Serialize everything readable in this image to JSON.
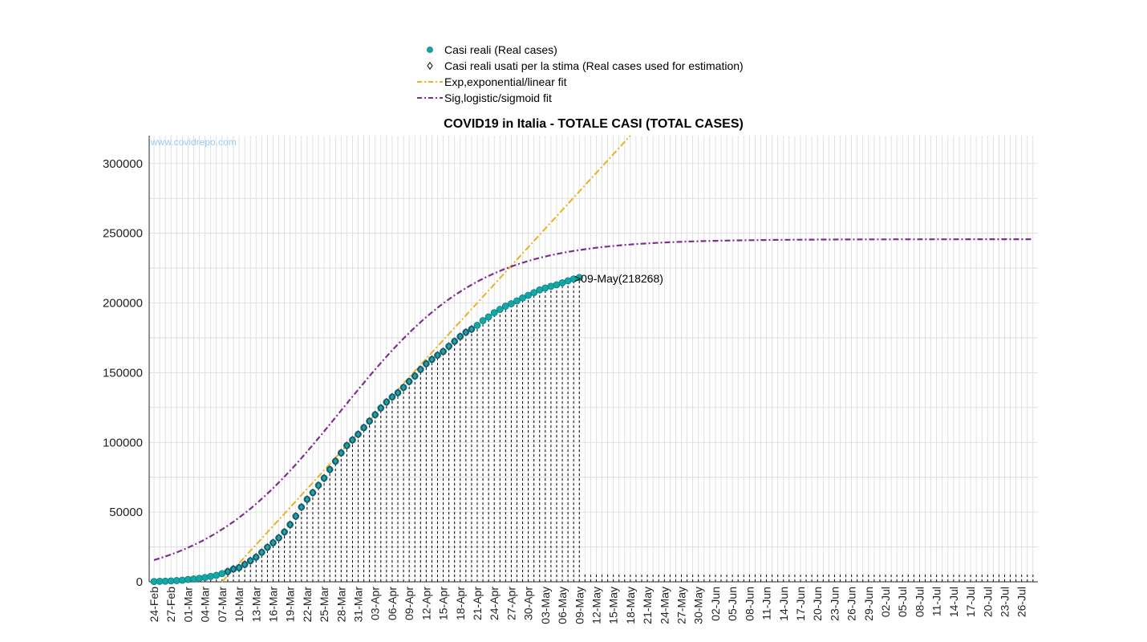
{
  "chart_data": {
    "type": "line",
    "title": "COVID19 in Italia - TOTALE CASI (TOTAL CASES)",
    "watermark": "www.covidrepo.com",
    "annotation": ">09-May(218268)",
    "xlabel": "",
    "ylabel": "",
    "ylim": [
      0,
      320000
    ],
    "yticks": [
      0,
      50000,
      100000,
      150000,
      200000,
      250000,
      300000
    ],
    "x_range": [
      "2020-02-24",
      "2020-07-28"
    ],
    "xtick_labels": [
      "24-Feb",
      "27-Feb",
      "01-Mar",
      "04-Mar",
      "07-Mar",
      "10-Mar",
      "13-Mar",
      "16-Mar",
      "19-Mar",
      "22-Mar",
      "25-Mar",
      "28-Mar",
      "31-Mar",
      "03-Apr",
      "06-Apr",
      "09-Apr",
      "12-Apr",
      "15-Apr",
      "18-Apr",
      "21-Apr",
      "24-Apr",
      "27-Apr",
      "30-Apr",
      "03-May",
      "06-May",
      "09-May",
      "12-May",
      "15-May",
      "18-May",
      "21-May",
      "24-May",
      "27-May",
      "30-May",
      "02-Jun",
      "05-Jun",
      "08-Jun",
      "11-Jun",
      "14-Jun",
      "17-Jun",
      "20-Jun",
      "23-Jun",
      "26-Jun",
      "29-Jun",
      "02-Jul",
      "05-Jul",
      "08-Jul",
      "11-Jul",
      "14-Jul",
      "17-Jul",
      "20-Jul",
      "23-Jul",
      "26-Jul"
    ],
    "grid": true,
    "legend_position": "top-center",
    "colors": {
      "real": "#13a8a8",
      "real_edge": "#0b7c7c",
      "estimation_marker": "#333355",
      "exp": "#edb120",
      "sig": "#7e2f8e",
      "grid": "#d9d9d9",
      "stems": "#000000"
    },
    "legend": [
      {
        "key": "real",
        "label": "Casi reali (Real cases)"
      },
      {
        "key": "est",
        "label": "Casi reali usati per la stima (Real cases used for estimation)"
      },
      {
        "key": "exp",
        "label": "Exp,exponential/linear fit"
      },
      {
        "key": "sig",
        "label": "Sig,logistic/sigmoid fit"
      }
    ],
    "series": [
      {
        "name": "Casi reali (Real cases)",
        "x_start": "2020-02-24",
        "values": [
          229,
          322,
          400,
          650,
          888,
          1128,
          1694,
          2036,
          2502,
          3089,
          3858,
          4636,
          5883,
          7375,
          9172,
          10149,
          12462,
          15113,
          17660,
          21157,
          24747,
          27980,
          31506,
          35713,
          41035,
          47021,
          53578,
          59138,
          63927,
          69176,
          74386,
          80539,
          86498,
          92472,
          97689,
          101739,
          105792,
          110574,
          115242,
          119827,
          124632,
          128948,
          132547,
          135586,
          139422,
          143626,
          147577,
          152271,
          156363,
          159516,
          162488,
          165155,
          168941,
          172434,
          175925,
          178972,
          181228,
          183957,
          187327,
          189973,
          192994,
          195351,
          197675,
          199414,
          201505,
          203591,
          205463,
          207428,
          209328,
          210717,
          211938,
          213013,
          214457,
          215858,
          217185,
          218268
        ]
      },
      {
        "name": "Casi reali usati per la stima (Real cases used for estimation)",
        "x_start": "2020-03-08",
        "x_end": "2020-04-20"
      },
      {
        "name": "Exp,exponential/linear fit",
        "points": [
          [
            "2020-03-07",
            0
          ],
          [
            "2020-05-18",
            320000
          ]
        ]
      },
      {
        "name": "Sig,logistic/sigmoid fit",
        "model": {
          "K": 245700,
          "t0": "2020-03-28",
          "r": 0.0815
        },
        "x_end": "2020-07-28"
      }
    ]
  }
}
